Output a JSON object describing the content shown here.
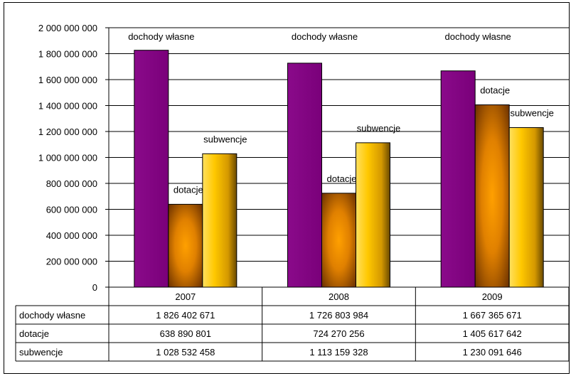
{
  "chart_data": {
    "type": "bar",
    "categories": [
      "2007",
      "2008",
      "2009"
    ],
    "series": [
      {
        "name": "dochody własne",
        "values": [
          1826402671,
          1726803984,
          1667365671
        ],
        "color": "#800080"
      },
      {
        "name": "dotacje",
        "values": [
          638890801,
          724270256,
          1405617642
        ],
        "color": "#cc7a00"
      },
      {
        "name": "subwencje",
        "values": [
          1028532458,
          1113159328,
          1230091646
        ],
        "color": "#f0c000"
      }
    ],
    "data_labels": [
      [
        "dochody własne",
        "dotacje",
        "subwencje"
      ],
      [
        "dochody własne",
        "dotacje",
        "subwencje"
      ],
      [
        "dochody własne",
        "dotacje",
        "subwencje"
      ]
    ],
    "yticks": [
      "0",
      "200 000 000",
      "400 000 000",
      "600 000 000",
      "800 000 000",
      "1 000 000 000",
      "1 200 000 000",
      "1 400 000 000",
      "1 600 000 000",
      "1 800 000 000",
      "2 000 000 000"
    ],
    "ylim": [
      0,
      2000000000
    ],
    "grid": true,
    "data_table": {
      "rows": [
        {
          "label": "dochody własne",
          "cells": [
            "1 826 402 671",
            "1 726 803 984",
            "1 667 365 671"
          ]
        },
        {
          "label": "dotacje",
          "cells": [
            "638 890 801",
            "724 270 256",
            "1 405 617 642"
          ]
        },
        {
          "label": "subwencje",
          "cells": [
            "1 028 532 458",
            "1 113 159 328",
            "1 230 091 646"
          ]
        }
      ]
    }
  }
}
